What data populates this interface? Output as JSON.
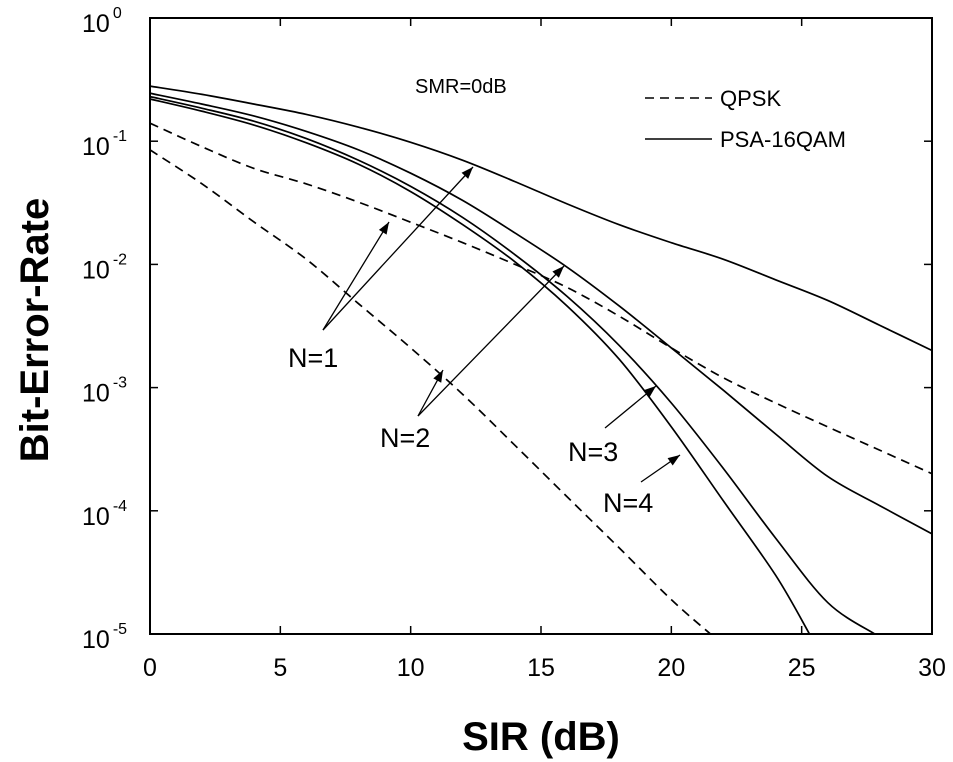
{
  "chart_data": {
    "type": "line",
    "xlabel": "SIR (dB)",
    "ylabel": "Bit-Error-Rate",
    "xlim": [
      0,
      30
    ],
    "ylim": [
      1e-05,
      1
    ],
    "yscale": "log",
    "grid": false,
    "legend_position": "top-right",
    "x_ticks": [
      "0",
      "5",
      "10",
      "15",
      "20",
      "25",
      "30"
    ],
    "y_ticks": [
      {
        "base": "10",
        "exp": "0"
      },
      {
        "base": "10",
        "exp": "-1"
      },
      {
        "base": "10",
        "exp": "-2"
      },
      {
        "base": "10",
        "exp": "-3"
      },
      {
        "base": "10",
        "exp": "-4"
      },
      {
        "base": "10",
        "exp": "-5"
      }
    ],
    "legend": [
      {
        "label": "QPSK",
        "style": "dashed"
      },
      {
        "label": "PSA-16QAM",
        "style": "solid"
      }
    ],
    "annotations": {
      "smr": "SMR=0dB",
      "n1": "N=1",
      "n2": "N=2",
      "n3": "N=3",
      "n4": "N=4"
    },
    "series": [
      {
        "group": "QPSK",
        "n": 1,
        "style": "dashed",
        "points": [
          [
            0,
            0.14
          ],
          [
            2,
            0.09
          ],
          [
            4,
            0.06
          ],
          [
            6,
            0.045
          ],
          [
            8,
            0.032
          ],
          [
            10,
            0.022
          ],
          [
            12,
            0.015
          ],
          [
            14,
            0.01
          ],
          [
            16,
            0.0065
          ],
          [
            18,
            0.0038
          ],
          [
            20,
            0.0021
          ],
          [
            22,
            0.0012
          ],
          [
            24,
            0.00075
          ],
          [
            26,
            0.00048
          ],
          [
            28,
            0.00031
          ],
          [
            30,
            0.0002
          ]
        ]
      },
      {
        "group": "QPSK",
        "n": 2,
        "style": "dashed",
        "points": [
          [
            0,
            0.085
          ],
          [
            2,
            0.045
          ],
          [
            4,
            0.022
          ],
          [
            6,
            0.011
          ],
          [
            8,
            0.0048
          ],
          [
            10,
            0.0021
          ],
          [
            12,
            0.00088
          ],
          [
            14,
            0.00034
          ],
          [
            16,
            0.00013
          ],
          [
            18,
            5e-05
          ],
          [
            20,
            1.9e-05
          ],
          [
            21.5,
            1e-05
          ]
        ]
      },
      {
        "group": "PSA-16QAM",
        "n": 1,
        "style": "solid",
        "points": [
          [
            0,
            0.28
          ],
          [
            2,
            0.24
          ],
          [
            4,
            0.2
          ],
          [
            6,
            0.165
          ],
          [
            8,
            0.13
          ],
          [
            10,
            0.098
          ],
          [
            12,
            0.07
          ],
          [
            14,
            0.047
          ],
          [
            16,
            0.031
          ],
          [
            18,
            0.021
          ],
          [
            20,
            0.015
          ],
          [
            22,
            0.011
          ],
          [
            24,
            0.0075
          ],
          [
            26,
            0.0051
          ],
          [
            28,
            0.0032
          ],
          [
            30,
            0.002
          ]
        ]
      },
      {
        "group": "PSA-16QAM",
        "n": 2,
        "style": "solid",
        "points": [
          [
            0,
            0.245
          ],
          [
            2,
            0.2
          ],
          [
            4,
            0.16
          ],
          [
            6,
            0.12
          ],
          [
            8,
            0.085
          ],
          [
            10,
            0.055
          ],
          [
            12,
            0.033
          ],
          [
            14,
            0.018
          ],
          [
            16,
            0.0095
          ],
          [
            18,
            0.0046
          ],
          [
            20,
            0.0021
          ],
          [
            22,
            0.00095
          ],
          [
            24,
            0.00042
          ],
          [
            26,
            0.00019
          ],
          [
            28,
            0.00011
          ],
          [
            30,
            6.5e-05
          ]
        ]
      },
      {
        "group": "PSA-16QAM",
        "n": 3,
        "style": "solid",
        "points": [
          [
            0,
            0.23
          ],
          [
            2,
            0.185
          ],
          [
            4,
            0.145
          ],
          [
            6,
            0.105
          ],
          [
            8,
            0.07
          ],
          [
            10,
            0.043
          ],
          [
            12,
            0.024
          ],
          [
            14,
            0.012
          ],
          [
            16,
            0.0055
          ],
          [
            18,
            0.0022
          ],
          [
            20,
            0.00075
          ],
          [
            22,
            0.00022
          ],
          [
            24,
            6e-05
          ],
          [
            26,
            1.8e-05
          ],
          [
            27.8,
            1e-05
          ]
        ]
      },
      {
        "group": "PSA-16QAM",
        "n": 4,
        "style": "solid",
        "points": [
          [
            0,
            0.22
          ],
          [
            2,
            0.175
          ],
          [
            4,
            0.135
          ],
          [
            6,
            0.097
          ],
          [
            8,
            0.065
          ],
          [
            10,
            0.039
          ],
          [
            12,
            0.021
          ],
          [
            14,
            0.0105
          ],
          [
            16,
            0.0046
          ],
          [
            18,
            0.0017
          ],
          [
            20,
            0.00048
          ],
          [
            22,
            0.00012
          ],
          [
            24,
            3e-05
          ],
          [
            25.3,
            1e-05
          ]
        ]
      }
    ]
  }
}
